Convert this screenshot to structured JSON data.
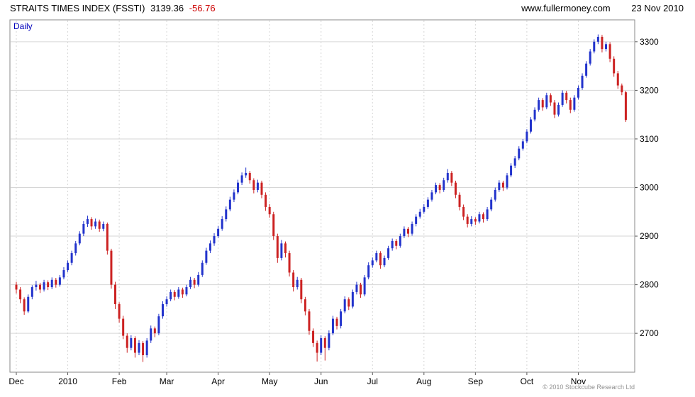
{
  "header": {
    "title": "STRAITS TIMES INDEX (FSSTI)",
    "last_price": "3139.36",
    "change": "-56.76",
    "site": "www.fullermoney.com",
    "date": "23 Nov 2010"
  },
  "chart": {
    "mode_label": "Daily",
    "copyright": "© 2010 Stockcube Research Ltd"
  },
  "chart_data": {
    "type": "candlestick",
    "title": "STRAITS TIMES INDEX (FSSTI) Daily",
    "last": 3139.36,
    "change": -56.76,
    "ylim": [
      2620,
      3345
    ],
    "y_ticks": [
      2700,
      2800,
      2900,
      3000,
      3100,
      3200,
      3300
    ],
    "x_tick_labels": [
      "Dec",
      "2010",
      "Feb",
      "Mar",
      "Apr",
      "May",
      "Jun",
      "Jul",
      "Aug",
      "Sep",
      "Oct",
      "Nov"
    ],
    "month_start_indices": [
      0,
      13,
      26,
      38,
      51,
      64,
      77,
      90,
      103,
      116,
      129,
      142
    ],
    "grid": true,
    "legend": "none",
    "colors": {
      "up": "#2233cc",
      "down": "#cc2222",
      "grid": "#d6d6d6",
      "frame": "#888888"
    },
    "candles_ohlc": [
      [
        2800,
        2806,
        2782,
        2790
      ],
      [
        2790,
        2795,
        2762,
        2770
      ],
      [
        2770,
        2774,
        2738,
        2745
      ],
      [
        2745,
        2780,
        2742,
        2775
      ],
      [
        2775,
        2799,
        2770,
        2795
      ],
      [
        2795,
        2808,
        2788,
        2800
      ],
      [
        2800,
        2804,
        2783,
        2790
      ],
      [
        2790,
        2810,
        2786,
        2805
      ],
      [
        2805,
        2809,
        2789,
        2795
      ],
      [
        2795,
        2815,
        2791,
        2810
      ],
      [
        2810,
        2814,
        2794,
        2800
      ],
      [
        2800,
        2820,
        2796,
        2815
      ],
      [
        2815,
        2836,
        2811,
        2830
      ],
      [
        2830,
        2850,
        2826,
        2845
      ],
      [
        2845,
        2870,
        2840,
        2865
      ],
      [
        2865,
        2890,
        2860,
        2885
      ],
      [
        2885,
        2910,
        2881,
        2905
      ],
      [
        2905,
        2931,
        2900,
        2925
      ],
      [
        2925,
        2942,
        2919,
        2935
      ],
      [
        2935,
        2939,
        2913,
        2920
      ],
      [
        2920,
        2936,
        2915,
        2930
      ],
      [
        2930,
        2934,
        2909,
        2915
      ],
      [
        2915,
        2930,
        2910,
        2925
      ],
      [
        2925,
        2928,
        2862,
        2870
      ],
      [
        2870,
        2874,
        2792,
        2800
      ],
      [
        2800,
        2806,
        2750,
        2760
      ],
      [
        2760,
        2764,
        2722,
        2730
      ],
      [
        2730,
        2736,
        2688,
        2695
      ],
      [
        2695,
        2700,
        2660,
        2670
      ],
      [
        2670,
        2696,
        2665,
        2690
      ],
      [
        2690,
        2694,
        2650,
        2660
      ],
      [
        2660,
        2686,
        2655,
        2680
      ],
      [
        2680,
        2684,
        2641,
        2655
      ],
      [
        2655,
        2690,
        2650,
        2685
      ],
      [
        2685,
        2716,
        2680,
        2710
      ],
      [
        2710,
        2714,
        2692,
        2700
      ],
      [
        2700,
        2740,
        2696,
        2735
      ],
      [
        2735,
        2766,
        2730,
        2760
      ],
      [
        2760,
        2776,
        2755,
        2770
      ],
      [
        2770,
        2790,
        2766,
        2785
      ],
      [
        2785,
        2789,
        2768,
        2775
      ],
      [
        2775,
        2795,
        2771,
        2790
      ],
      [
        2790,
        2794,
        2773,
        2780
      ],
      [
        2780,
        2800,
        2776,
        2795
      ],
      [
        2795,
        2816,
        2791,
        2810
      ],
      [
        2810,
        2814,
        2793,
        2800
      ],
      [
        2800,
        2826,
        2796,
        2820
      ],
      [
        2820,
        2850,
        2816,
        2845
      ],
      [
        2845,
        2876,
        2841,
        2870
      ],
      [
        2870,
        2891,
        2865,
        2885
      ],
      [
        2885,
        2906,
        2880,
        2900
      ],
      [
        2900,
        2921,
        2896,
        2915
      ],
      [
        2915,
        2941,
        2911,
        2935
      ],
      [
        2935,
        2961,
        2930,
        2955
      ],
      [
        2955,
        2981,
        2951,
        2975
      ],
      [
        2975,
        2996,
        2970,
        2990
      ],
      [
        2990,
        3016,
        2986,
        3010
      ],
      [
        3010,
        3031,
        3005,
        3025
      ],
      [
        3025,
        3041,
        3020,
        3030
      ],
      [
        3030,
        3034,
        3008,
        3015
      ],
      [
        3015,
        3019,
        2988,
        2995
      ],
      [
        2995,
        3016,
        2990,
        3010
      ],
      [
        3010,
        3014,
        2978,
        2985
      ],
      [
        2985,
        2990,
        2952,
        2960
      ],
      [
        2960,
        2966,
        2938,
        2945
      ],
      [
        2945,
        2950,
        2892,
        2900
      ],
      [
        2900,
        2905,
        2845,
        2855
      ],
      [
        2855,
        2892,
        2850,
        2885
      ],
      [
        2885,
        2889,
        2856,
        2865
      ],
      [
        2865,
        2870,
        2817,
        2825
      ],
      [
        2825,
        2830,
        2786,
        2795
      ],
      [
        2795,
        2816,
        2790,
        2810
      ],
      [
        2810,
        2814,
        2762,
        2770
      ],
      [
        2770,
        2775,
        2737,
        2745
      ],
      [
        2745,
        2750,
        2697,
        2705
      ],
      [
        2705,
        2710,
        2672,
        2680
      ],
      [
        2680,
        2685,
        2642,
        2660
      ],
      [
        2660,
        2696,
        2655,
        2690
      ],
      [
        2690,
        2694,
        2644,
        2670
      ],
      [
        2670,
        2706,
        2665,
        2700
      ],
      [
        2700,
        2736,
        2696,
        2730
      ],
      [
        2730,
        2734,
        2708,
        2715
      ],
      [
        2715,
        2750,
        2710,
        2745
      ],
      [
        2745,
        2776,
        2741,
        2770
      ],
      [
        2770,
        2774,
        2748,
        2755
      ],
      [
        2755,
        2790,
        2751,
        2785
      ],
      [
        2785,
        2806,
        2780,
        2800
      ],
      [
        2800,
        2804,
        2773,
        2780
      ],
      [
        2780,
        2820,
        2776,
        2815
      ],
      [
        2815,
        2846,
        2811,
        2840
      ],
      [
        2840,
        2856,
        2835,
        2850
      ],
      [
        2850,
        2870,
        2846,
        2865
      ],
      [
        2865,
        2869,
        2833,
        2840
      ],
      [
        2840,
        2860,
        2836,
        2855
      ],
      [
        2855,
        2880,
        2851,
        2875
      ],
      [
        2875,
        2895,
        2870,
        2890
      ],
      [
        2890,
        2894,
        2873,
        2880
      ],
      [
        2880,
        2905,
        2876,
        2900
      ],
      [
        2900,
        2920,
        2896,
        2915
      ],
      [
        2915,
        2919,
        2898,
        2905
      ],
      [
        2905,
        2930,
        2901,
        2925
      ],
      [
        2925,
        2945,
        2920,
        2940
      ],
      [
        2940,
        2956,
        2936,
        2950
      ],
      [
        2950,
        2966,
        2946,
        2960
      ],
      [
        2960,
        2980,
        2956,
        2975
      ],
      [
        2975,
        2995,
        2971,
        2990
      ],
      [
        2990,
        3010,
        2986,
        3005
      ],
      [
        3005,
        3009,
        2988,
        2995
      ],
      [
        2995,
        3020,
        2991,
        3015
      ],
      [
        3015,
        3038,
        3010,
        3030
      ],
      [
        3030,
        3034,
        3003,
        3010
      ],
      [
        3010,
        3014,
        2978,
        2985
      ],
      [
        2985,
        2990,
        2953,
        2960
      ],
      [
        2960,
        2965,
        2933,
        2940
      ],
      [
        2940,
        2945,
        2918,
        2925
      ],
      [
        2925,
        2941,
        2920,
        2935
      ],
      [
        2935,
        2939,
        2923,
        2930
      ],
      [
        2930,
        2950,
        2926,
        2945
      ],
      [
        2945,
        2949,
        2928,
        2935
      ],
      [
        2935,
        2960,
        2931,
        2955
      ],
      [
        2955,
        2980,
        2951,
        2975
      ],
      [
        2975,
        3000,
        2971,
        2995
      ],
      [
        2995,
        3015,
        2991,
        3010
      ],
      [
        3010,
        3014,
        2993,
        3000
      ],
      [
        3000,
        3030,
        2996,
        3025
      ],
      [
        3025,
        3050,
        3021,
        3045
      ],
      [
        3045,
        3065,
        3040,
        3060
      ],
      [
        3060,
        3085,
        3056,
        3080
      ],
      [
        3080,
        3100,
        3076,
        3095
      ],
      [
        3095,
        3120,
        3091,
        3115
      ],
      [
        3115,
        3145,
        3111,
        3140
      ],
      [
        3140,
        3165,
        3136,
        3160
      ],
      [
        3160,
        3185,
        3156,
        3180
      ],
      [
        3180,
        3184,
        3158,
        3165
      ],
      [
        3165,
        3195,
        3161,
        3190
      ],
      [
        3190,
        3194,
        3168,
        3175
      ],
      [
        3175,
        3180,
        3143,
        3150
      ],
      [
        3150,
        3175,
        3146,
        3170
      ],
      [
        3170,
        3200,
        3166,
        3195
      ],
      [
        3195,
        3199,
        3173,
        3180
      ],
      [
        3180,
        3185,
        3153,
        3160
      ],
      [
        3160,
        3190,
        3156,
        3185
      ],
      [
        3185,
        3210,
        3181,
        3205
      ],
      [
        3205,
        3235,
        3201,
        3230
      ],
      [
        3230,
        3260,
        3226,
        3255
      ],
      [
        3255,
        3285,
        3251,
        3280
      ],
      [
        3280,
        3305,
        3276,
        3300
      ],
      [
        3300,
        3315,
        3295,
        3310
      ],
      [
        3310,
        3314,
        3278,
        3285
      ],
      [
        3285,
        3300,
        3280,
        3295
      ],
      [
        3295,
        3299,
        3258,
        3265
      ],
      [
        3265,
        3270,
        3228,
        3235
      ],
      [
        3235,
        3240,
        3203,
        3210
      ],
      [
        3210,
        3214,
        3190,
        3196
      ],
      [
        3196,
        3199,
        3135,
        3139
      ]
    ]
  }
}
